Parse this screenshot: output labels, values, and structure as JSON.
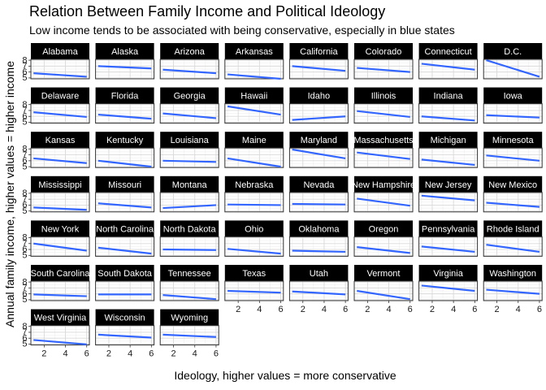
{
  "chart_data": {
    "type": "line",
    "title": "Relation Between Family Income and Political Ideology",
    "subtitle": "Low income tends to be associated with being conservative, especially in blue states",
    "xlabel": "Ideology, higher values = more conservative",
    "ylabel": "Annual family income, higher values = higher income",
    "xlim": [
      0.75,
      6.25
    ],
    "ylim": [
      4.85,
      8.15
    ],
    "x_ticks": [
      2,
      4,
      6
    ],
    "y_ticks": [
      5,
      6,
      7,
      8
    ],
    "grid": true,
    "line_color": "#3366ff",
    "facets": [
      {
        "name": "Alabama",
        "x": [
          1,
          6
        ],
        "y": [
          5.8,
          5.2
        ]
      },
      {
        "name": "Alaska",
        "x": [
          1,
          6
        ],
        "y": [
          7.0,
          6.6
        ]
      },
      {
        "name": "Arizona",
        "x": [
          1,
          6
        ],
        "y": [
          6.4,
          5.8
        ]
      },
      {
        "name": "Arkansas",
        "x": [
          1,
          6
        ],
        "y": [
          5.6,
          4.85
        ]
      },
      {
        "name": "California",
        "x": [
          1,
          6
        ],
        "y": [
          7.0,
          6.2
        ]
      },
      {
        "name": "Colorado",
        "x": [
          1,
          6
        ],
        "y": [
          6.7,
          6.0
        ]
      },
      {
        "name": "Connecticut",
        "x": [
          1,
          6
        ],
        "y": [
          7.4,
          6.4
        ]
      },
      {
        "name": "D.C.",
        "x": [
          1,
          6
        ],
        "y": [
          8.0,
          5.2
        ]
      },
      {
        "name": "Delaware",
        "x": [
          1,
          6
        ],
        "y": [
          6.7,
          5.9
        ]
      },
      {
        "name": "Florida",
        "x": [
          1,
          6
        ],
        "y": [
          6.3,
          5.6
        ]
      },
      {
        "name": "Georgia",
        "x": [
          1,
          6
        ],
        "y": [
          6.5,
          5.7
        ]
      },
      {
        "name": "Hawaii",
        "x": [
          1,
          6
        ],
        "y": [
          7.7,
          6.3
        ]
      },
      {
        "name": "Idaho",
        "x": [
          1,
          6
        ],
        "y": [
          5.4,
          6.0
        ]
      },
      {
        "name": "Illinois",
        "x": [
          1,
          6
        ],
        "y": [
          6.9,
          5.9
        ]
      },
      {
        "name": "Indiana",
        "x": [
          1,
          6
        ],
        "y": [
          6.0,
          5.3
        ]
      },
      {
        "name": "Iowa",
        "x": [
          1,
          6
        ],
        "y": [
          6.2,
          5.8
        ]
      },
      {
        "name": "Kansas",
        "x": [
          1,
          6
        ],
        "y": [
          6.4,
          5.6
        ]
      },
      {
        "name": "Kentucky",
        "x": [
          1,
          6
        ],
        "y": [
          6.0,
          5.0
        ]
      },
      {
        "name": "Louisiana",
        "x": [
          1,
          6
        ],
        "y": [
          6.0,
          5.8
        ]
      },
      {
        "name": "Maine",
        "x": [
          1,
          6
        ],
        "y": [
          6.4,
          5.0
        ]
      },
      {
        "name": "Maryland",
        "x": [
          1,
          6
        ],
        "y": [
          7.9,
          6.4
        ]
      },
      {
        "name": "Massachusetts",
        "x": [
          1,
          6
        ],
        "y": [
          7.4,
          6.3
        ]
      },
      {
        "name": "Michigan",
        "x": [
          1,
          6
        ],
        "y": [
          6.2,
          5.3
        ]
      },
      {
        "name": "Minnesota",
        "x": [
          1,
          6
        ],
        "y": [
          6.9,
          6.0
        ]
      },
      {
        "name": "Mississippi",
        "x": [
          1,
          6
        ],
        "y": [
          5.6,
          5.2
        ]
      },
      {
        "name": "Missouri",
        "x": [
          1,
          6
        ],
        "y": [
          6.3,
          5.6
        ]
      },
      {
        "name": "Montana",
        "x": [
          1,
          6
        ],
        "y": [
          5.5,
          6.0
        ]
      },
      {
        "name": "Nebraska",
        "x": [
          1,
          6
        ],
        "y": [
          6.1,
          6.0
        ]
      },
      {
        "name": "Nevada",
        "x": [
          1,
          6
        ],
        "y": [
          6.2,
          6.1
        ]
      },
      {
        "name": "New Hampshire",
        "x": [
          1,
          6
        ],
        "y": [
          7.1,
          5.9
        ]
      },
      {
        "name": "New Jersey",
        "x": [
          1,
          6
        ],
        "y": [
          7.6,
          6.8
        ]
      },
      {
        "name": "New Mexico",
        "x": [
          1,
          6
        ],
        "y": [
          6.4,
          5.7
        ]
      },
      {
        "name": "New York",
        "x": [
          1,
          6
        ],
        "y": [
          7.0,
          5.8
        ]
      },
      {
        "name": "North Carolina",
        "x": [
          1,
          6
        ],
        "y": [
          6.3,
          5.3
        ]
      },
      {
        "name": "North Dakota",
        "x": [
          1,
          6
        ],
        "y": [
          6.0,
          5.9
        ]
      },
      {
        "name": "Ohio",
        "x": [
          1,
          6
        ],
        "y": [
          6.1,
          5.3
        ]
      },
      {
        "name": "Oklahoma",
        "x": [
          1,
          6
        ],
        "y": [
          5.8,
          5.6
        ]
      },
      {
        "name": "Oregon",
        "x": [
          1,
          6
        ],
        "y": [
          6.4,
          5.4
        ]
      },
      {
        "name": "Pennsylvania",
        "x": [
          1,
          6
        ],
        "y": [
          6.5,
          5.6
        ]
      },
      {
        "name": "Rhode Island",
        "x": [
          1,
          6
        ],
        "y": [
          6.8,
          5.6
        ]
      },
      {
        "name": "South Carolina",
        "x": [
          1,
          6
        ],
        "y": [
          5.9,
          5.6
        ]
      },
      {
        "name": "South Dakota",
        "x": [
          1,
          6
        ],
        "y": [
          5.9,
          5.9
        ]
      },
      {
        "name": "Tennessee",
        "x": [
          1,
          6
        ],
        "y": [
          5.8,
          5.1
        ]
      },
      {
        "name": "Texas",
        "x": [
          1,
          6
        ],
        "y": [
          6.5,
          6.2
        ]
      },
      {
        "name": "Utah",
        "x": [
          1,
          6
        ],
        "y": [
          6.4,
          5.9
        ]
      },
      {
        "name": "Vermont",
        "x": [
          1,
          6
        ],
        "y": [
          6.5,
          5.1
        ]
      },
      {
        "name": "Virginia",
        "x": [
          1,
          6
        ],
        "y": [
          7.4,
          6.5
        ]
      },
      {
        "name": "Washington",
        "x": [
          1,
          6
        ],
        "y": [
          6.7,
          6.0
        ]
      },
      {
        "name": "West Virginia",
        "x": [
          1,
          6
        ],
        "y": [
          5.7,
          4.95
        ]
      },
      {
        "name": "Wisconsin",
        "x": [
          1,
          6
        ],
        "y": [
          6.6,
          6.1
        ]
      },
      {
        "name": "Wyoming",
        "x": [
          1,
          6
        ],
        "y": [
          6.6,
          6.2
        ]
      }
    ]
  }
}
